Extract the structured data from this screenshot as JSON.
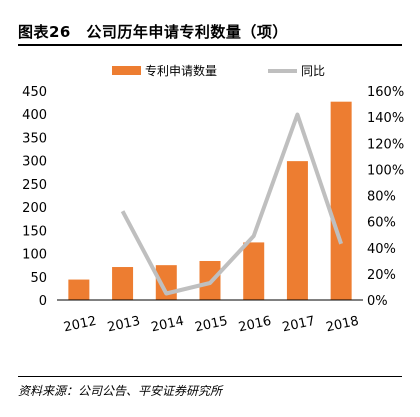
{
  "figure": {
    "title": "图表26　公司历年申请专利数量（项）",
    "source": "资料来源：公司公告、平安证券研究所"
  },
  "colors": {
    "bar": "#ED7D31",
    "line": "#BFBFBF"
  },
  "chart_data": {
    "type": "bar+line",
    "categories": [
      "2012",
      "2013",
      "2014",
      "2015",
      "2016",
      "2017",
      "2018"
    ],
    "series": [
      {
        "name": "专利申请数量",
        "type": "bar",
        "axis": "left",
        "values": [
          44,
          71,
          75,
          84,
          124,
          299,
          427
        ]
      },
      {
        "name": "同比",
        "type": "line",
        "axis": "right",
        "values": [
          null,
          0.68,
          0.05,
          0.13,
          0.49,
          1.42,
          0.43
        ]
      }
    ],
    "y_left": {
      "min": 0,
      "max": 450,
      "step": 50,
      "ticks": [
        "0",
        "50",
        "100",
        "150",
        "200",
        "250",
        "300",
        "350",
        "400",
        "450"
      ]
    },
    "y_right": {
      "min": 0,
      "max": 1.6,
      "step": 0.2,
      "ticks": [
        "0%",
        "20%",
        "40%",
        "60%",
        "80%",
        "100%",
        "120%",
        "140%",
        "160%"
      ]
    },
    "grid": false,
    "legend_position": "top"
  }
}
